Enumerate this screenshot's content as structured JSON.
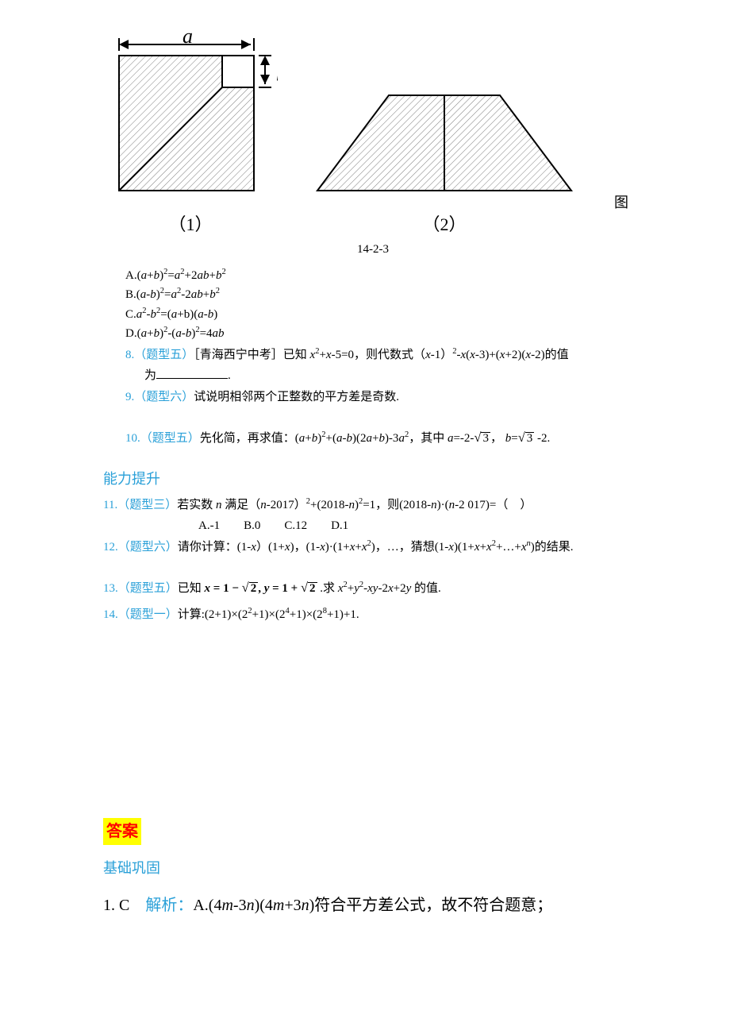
{
  "figure": {
    "label_a": "a",
    "label_b": "b",
    "sub1": "（1）",
    "sub2": "（2）",
    "side_text": "图",
    "caption": "14-2-3",
    "line_color": "#000000",
    "hatch_color": "#808080",
    "background": "#ffffff"
  },
  "options": {
    "A_prefix": "A.",
    "A_expr_html": "(<em class='var'>a</em>+<em class='var'>b</em>)<sup>2</sup>=<em class='var'>a</em><sup>2</sup>+2<em class='var'>ab</em>+<em class='var'>b</em><sup>2</sup>",
    "B_prefix": "B.",
    "B_expr_html": "(<em class='var'>a</em>-<em class='var'>b</em>)<sup>2</sup>=<em class='var'>a</em><sup>2</sup>-2<em class='var'>ab</em>+<em class='var'>b</em><sup>2</sup>",
    "C_prefix": "C.",
    "C_expr_html": "<em class='var'>a</em><sup>2</sup>-<em class='var'>b</em><sup>2</sup>=(<em class='var'>a</em>+b)(<em class='var'>a</em>-<em class='var'>b</em>)",
    "D_prefix": "D.",
    "D_expr_html": "(<em class='var'>a</em>+<em class='var'>b</em>)<sup>2</sup>-(<em class='var'>a</em>-<em class='var'>b</em>)<sup>2</sup>=4<em class='var'>ab</em>"
  },
  "q8": {
    "num": "8.（题型五）",
    "text_html": "［青海西宁中考］已知 <em class='var'>x</em><sup>2</sup>+<em class='var'>x</em>-5=0，则代数式（<em class='var'>x</em>-1）<sup>2</sup>-<em class='var'>x</em>(<em class='var'>x</em>-3)+(<em class='var'>x</em>+2)(<em class='var'>x</em>-2)的值",
    "tail": "为",
    "period": "."
  },
  "q9": {
    "num": "9.（题型六）",
    "text": "试说明相邻两个正整数的平方差是奇数."
  },
  "q10": {
    "num": "10.（题型五）",
    "text_lead": "先化简，再求值：",
    "expr_html": "(<em class='var'>a</em>+<em class='var'>b</em>)<sup>2</sup>+(<em class='var'>a</em>-<em class='var'>b</em>)(2<em class='var'>a</em>+<em class='var'>b</em>)-3<em class='var'>a</em><sup>2</sup>，其中 <em class='var'>a</em>=-2-",
    "mid": "， <em class='var'>b</em>=",
    "tail": " -2.",
    "rad": "3"
  },
  "section_ability": "能力提升",
  "q11": {
    "num": "11.（题型三）",
    "text_html": "若实数 <em class='var'>n</em> 满足（<em class='var'>n</em>-2017）<sup>2</sup>+(2018-<em class='var'>n</em>)<sup>2</sup>=1，则(2018-<em class='var'>n</em>)·(<em class='var'>n</em>-2 017)=（　）",
    "choices": "A.-1　　B.0　　C.12　　D.1"
  },
  "q12": {
    "num": "12.（题型六）",
    "text_html": "请你计算：(1-<em class='var'>x</em>）(1+<em class='var'>x</em>)，(1-<em class='var'>x</em>)·(1+<em class='var'>x</em>+<em class='var'>x</em><sup>2</sup>)，…，猜想(1-<em class='var'>x</em>)(1+<em class='var'>x</em>+<em class='var'>x</em><sup>2</sup>+…+<em class='var'>x</em><sup><em class='var'>n</em></sup>)的结果."
  },
  "q13": {
    "num": "13.（题型五）",
    "lead": "已知 ",
    "xy_html": "<b><i>x</i> = 1 − </b>",
    "rad2": "2",
    "mid_html": "<b>, <i>y</i> = 1 + </b>",
    "after_html": " .求 <em class='var'>x</em><sup>2</sup>+<em class='var'>y</em><sup>2</sup>-<em class='var'>xy</em>-2<em class='var'>x</em>+2<em class='var'>y</em> 的值."
  },
  "q14": {
    "num": "14.（题型一）",
    "text_html": "计算:(2+1)×(2<sup>2</sup>+1)×(2<sup>4</sup>+1)×(2<sup>8</sup>+1)+1."
  },
  "answers_title": "答案",
  "section_basic": "基础巩固",
  "sol1": {
    "num": "1. C",
    "jiexi": "解析：",
    "text_html": "A.(4<em class='var'>m</em>-3<em class='var'>n</em>)(4<em class='var'>m</em>+3<em class='var'>n</em>)符合平方差公式，故不符合题意；"
  }
}
